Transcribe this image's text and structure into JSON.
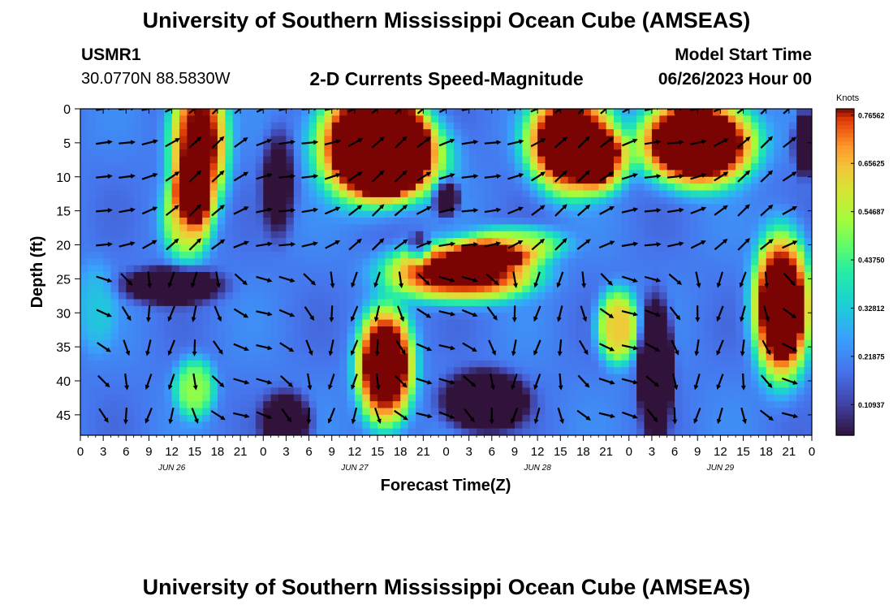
{
  "page": {
    "title_top": "University of Southern Mississippi Ocean Cube (AMSEAS)",
    "title_bottom": "University of Southern Mississippi Ocean Cube (AMSEAS)",
    "station": {
      "name": "USMR1",
      "coords": "30.0770N  88.5830W"
    },
    "plot_title": "2-D Currents Speed-Magnitude",
    "model_start": {
      "label": "Model Start Time",
      "value": "06/26/2023 Hour 00"
    }
  },
  "chart_data": {
    "type": "heatmap",
    "title": "2-D Currents Speed-Magnitude",
    "xlabel": "Forecast Time(Z)",
    "ylabel": "Depth (ft)",
    "colorbar_label": "Knots",
    "colorbar_ticks": [
      "0.76562",
      "0.65625",
      "0.54687",
      "0.43750",
      "0.32812",
      "0.21875",
      "0.10937"
    ],
    "colorbar_values": [
      0.76562,
      0.65625,
      0.54687,
      0.4375,
      0.32812,
      0.21875,
      0.10937
    ],
    "colorbar_range": [
      0.04,
      0.78
    ],
    "x_tick_labels": [
      "0",
      "3",
      "6",
      "9",
      "12",
      "15",
      "18",
      "21",
      "0",
      "3",
      "6",
      "9",
      "12",
      "15",
      "18",
      "21",
      "0",
      "3",
      "6",
      "9",
      "12",
      "15",
      "18",
      "21",
      "0",
      "3",
      "6",
      "9",
      "12",
      "15",
      "18",
      "21",
      "0"
    ],
    "x_range_hours": [
      0,
      96
    ],
    "date_labels": [
      {
        "label": "JUN 26",
        "hour": 12
      },
      {
        "label": "JUN 27",
        "hour": 36
      },
      {
        "label": "JUN 28",
        "hour": 60
      },
      {
        "label": "JUN 29",
        "hour": 84
      }
    ],
    "y_ticks": [
      "0",
      "5",
      "10",
      "15",
      "20",
      "25",
      "30",
      "35",
      "40",
      "45"
    ],
    "y_range_ft": [
      0,
      48
    ],
    "speed_blobs": [
      {
        "t": 15.5,
        "d": 5,
        "rt": 3.5,
        "rd": 10,
        "v": 0.62
      },
      {
        "t": 14,
        "d": 16,
        "rt": 3,
        "rd": 6,
        "v": 0.36
      },
      {
        "t": 12,
        "d": 26,
        "rt": 6,
        "rd": 2.5,
        "v": -0.28
      },
      {
        "t": 15,
        "d": 41,
        "rt": 2.5,
        "rd": 4,
        "v": 0.3
      },
      {
        "t": 2,
        "d": 29,
        "rt": 2.5,
        "rd": 6,
        "v": 0.1
      },
      {
        "t": 26,
        "d": 11,
        "rt": 2,
        "rd": 7,
        "v": -0.2
      },
      {
        "t": 27,
        "d": 46,
        "rt": 3,
        "rd": 4,
        "v": -0.25
      },
      {
        "t": 38,
        "d": 5,
        "rt": 6.5,
        "rd": 8,
        "v": 0.72
      },
      {
        "t": 42,
        "d": 7,
        "rt": 6,
        "rd": 6,
        "v": 0.45
      },
      {
        "t": 48,
        "d": 13,
        "rt": 1.5,
        "rd": 2.5,
        "v": -0.3
      },
      {
        "t": 44.5,
        "d": 20.5,
        "rt": 1.2,
        "rd": 2,
        "v": -0.25
      },
      {
        "t": 40,
        "d": 38,
        "rt": 3.5,
        "rd": 8,
        "v": 0.68
      },
      {
        "t": 50,
        "d": 24,
        "rt": 9,
        "rd": 4,
        "v": 0.62
      },
      {
        "t": 57,
        "d": 20,
        "rt": 6,
        "rd": 2.5,
        "v": 0.35
      },
      {
        "t": 53,
        "d": 43,
        "rt": 5,
        "rd": 4,
        "v": -0.35
      },
      {
        "t": 64.5,
        "d": 5,
        "rt": 5.5,
        "rd": 7,
        "v": 0.7
      },
      {
        "t": 69,
        "d": 8,
        "rt": 3,
        "rd": 4,
        "v": 0.3
      },
      {
        "t": 70.5,
        "d": 32,
        "rt": 2.5,
        "rd": 5,
        "v": 0.45
      },
      {
        "t": 75.5,
        "d": 38,
        "rt": 2,
        "rd": 9,
        "v": -0.38
      },
      {
        "t": 81,
        "d": 5,
        "rt": 7,
        "rd": 6,
        "v": 0.75
      },
      {
        "t": 92,
        "d": 29,
        "rt": 3.5,
        "rd": 10,
        "v": 0.7
      },
      {
        "t": 95,
        "d": 5,
        "rt": 1.2,
        "rd": 4,
        "v": -0.4
      }
    ],
    "arrow_rows_ft": [
      0,
      5,
      10,
      15,
      20,
      25,
      30,
      35,
      40,
      45
    ],
    "arrow_step_hours": 3
  }
}
